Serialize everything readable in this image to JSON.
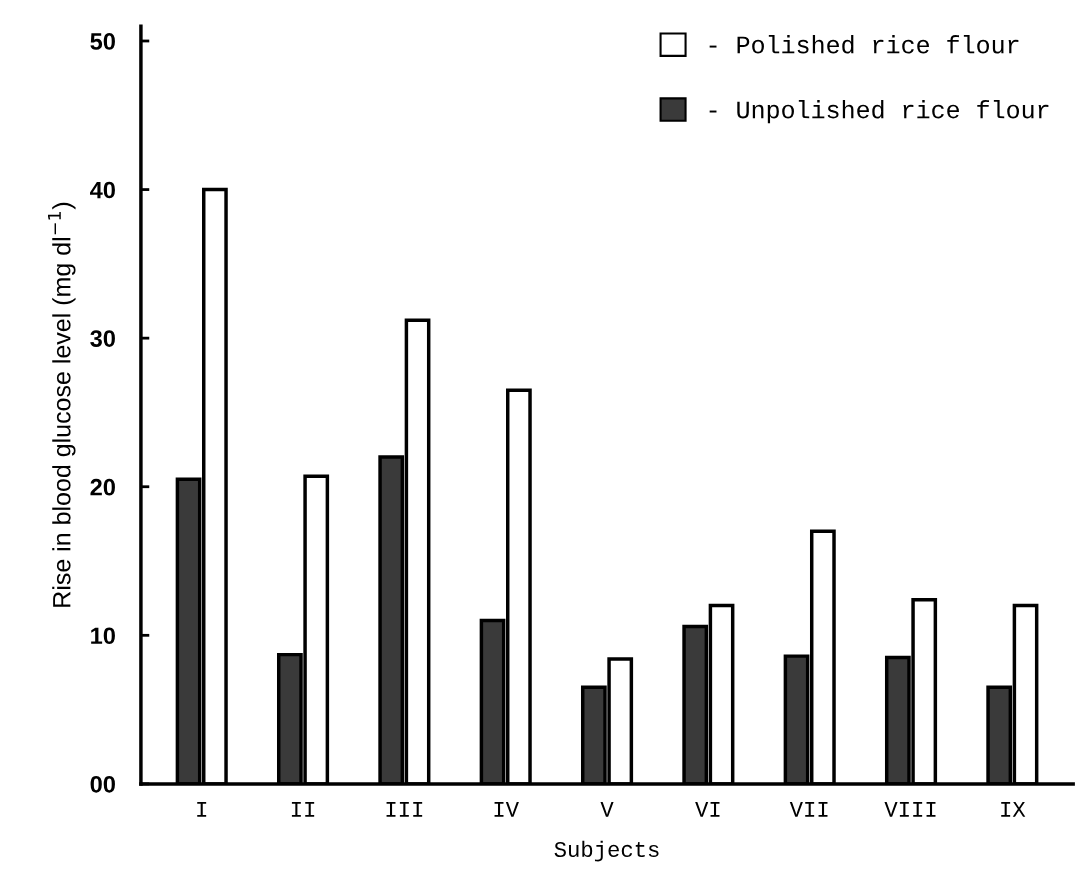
{
  "chart_data": {
    "type": "bar",
    "xlabel": "Subjects",
    "ylabel": "Rise in blood glucose level (mg dl$^{−1}$)",
    "categories": [
      "I",
      "II",
      "III",
      "IV",
      "V",
      "VI",
      "VII",
      "VIII",
      "IX"
    ],
    "series": [
      {
        "name": "- Unpolished rice flour",
        "color": "#3a3a3a",
        "values": [
          20.5,
          8.7,
          22,
          11,
          6.5,
          10.6,
          8.6,
          8.5,
          6.5
        ]
      },
      {
        "name": "- Polished rice flour",
        "color": "#ffffff",
        "values": [
          40,
          20.7,
          31.2,
          26.5,
          8.4,
          12,
          17,
          12.4,
          12
        ]
      }
    ],
    "ylim": [
      0,
      51
    ],
    "yticks": [
      {
        "value": 0,
        "label": "00"
      },
      10,
      20,
      30,
      40,
      50
    ],
    "grid": false,
    "legend": "top right"
  }
}
